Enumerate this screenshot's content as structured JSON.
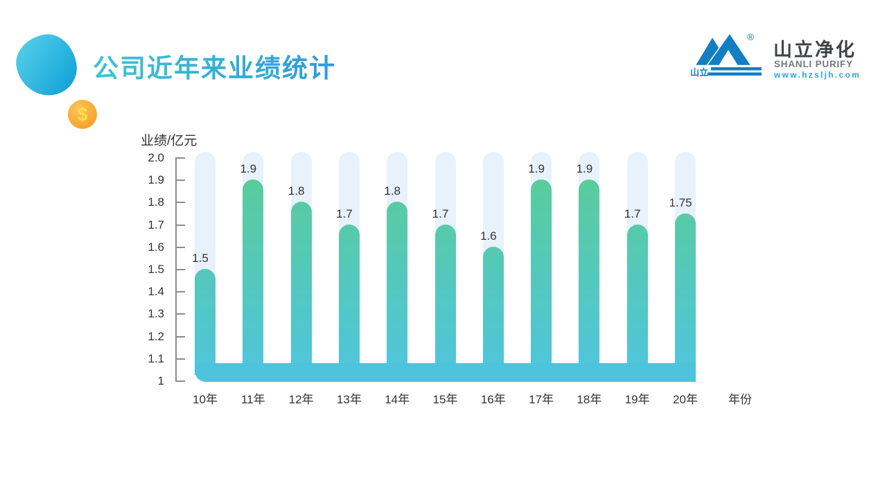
{
  "slide_title": "公司近年来业绩统计",
  "decor": {
    "coin_symbol": "$"
  },
  "logo": {
    "mark_text": "山立",
    "registered": "®",
    "name_cn": "山立净化",
    "name_en": "SHANLI PURIFY",
    "website": "www.hzsljh.com"
  },
  "chart_data": {
    "type": "bar",
    "title": "公司近年来业绩统计",
    "ylabel": "业绩/亿元",
    "xlabel": "年份",
    "categories": [
      "10年",
      "11年",
      "12年",
      "13年",
      "14年",
      "15年",
      "16年",
      "17年",
      "18年",
      "19年",
      "20年"
    ],
    "values": [
      1.5,
      1.9,
      1.8,
      1.7,
      1.8,
      1.7,
      1.6,
      1.9,
      1.9,
      1.7,
      1.75
    ],
    "value_labels": [
      "1.5",
      "1.9",
      "1.8",
      "1.7",
      "1.8",
      "1.7",
      "1.6",
      "1.9",
      "1.9",
      "1.7",
      "1.75"
    ],
    "ytick_labels": [
      "2.0",
      "1.9",
      "1.8",
      "1.7",
      "1.6",
      "1.5",
      "1.4",
      "1.3",
      "1.2",
      "1.1",
      "1"
    ],
    "ylim": [
      1,
      2
    ],
    "grid": false,
    "legend": "none",
    "style": {
      "bar_gradient_top": "#5bcd92",
      "bar_gradient_bottom": "#4fc5dd",
      "track_color": "#e8f2fb",
      "base_strip_color": "#4dc4dc",
      "axis_color": "#8c8c8c",
      "text_color": "#333333"
    }
  },
  "theme": {
    "title_gradient_start": "#3fc4d0",
    "title_gradient_end": "#2c9bdc",
    "blob_gradient_start": "#4ecbe8",
    "blob_gradient_end": "#17a6d8",
    "coin_color": "#f7a22a",
    "coin_highlight": "#fdc55e",
    "coin_symbol_color": "#f8df4a",
    "logo_blue": "#137fc3",
    "logo_text_dark": "#3d4346",
    "logo_text_gray": "#75797b",
    "logo_url_blue": "#2aa2dc"
  }
}
